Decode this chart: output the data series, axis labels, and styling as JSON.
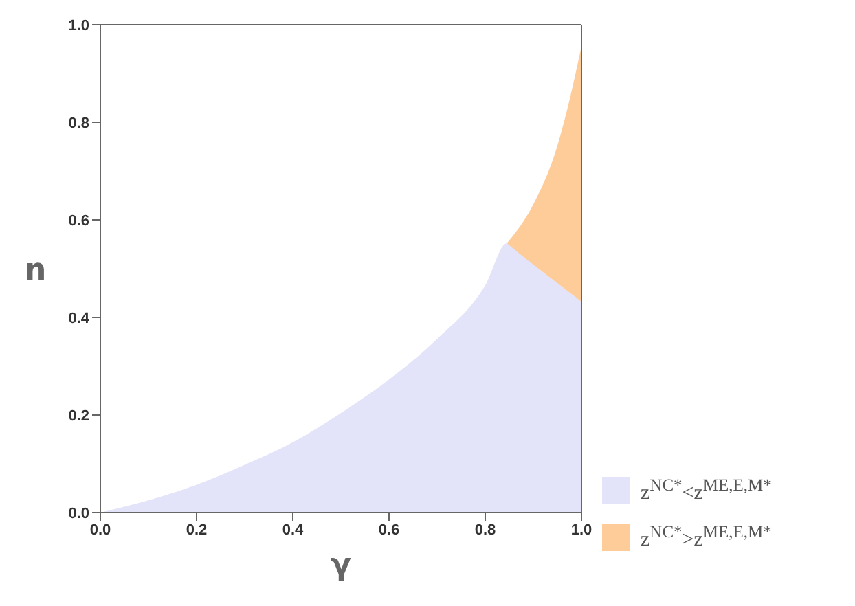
{
  "chart_data": {
    "type": "area",
    "stacked": true,
    "xlabel": "γ",
    "ylabel": "n",
    "x": [
      0,
      0.1,
      0.2,
      0.3,
      0.4,
      0.5,
      0.6,
      0.7,
      0.8,
      0.845,
      0.9,
      0.95,
      0.97,
      1.0
    ],
    "series": [
      {
        "name": "z$^{NC*}$<z$^{ME,E,M*}$",
        "color": "#e3e3fa",
        "values": [
          0,
          0.025,
          0.057,
          0.098,
          0.144,
          0.204,
          0.273,
          0.356,
          0.466,
          0.552,
          0.508,
          0.47,
          0.455,
          0.432
        ]
      },
      {
        "name": "z$^{NC*}$>z$^{ME,E,M*}$",
        "color": "#fecc99",
        "values": [
          null,
          null,
          null,
          null,
          null,
          null,
          null,
          null,
          null,
          0,
          0.124,
          0.282,
          0.37,
          0.524
        ]
      }
    ],
    "xlim": [
      0,
      1.0
    ],
    "xticks": [
      {
        "value": 0,
        "label": "0.0"
      },
      0.2,
      0.4,
      0.6,
      0.8,
      {
        "value": 1,
        "label": "1.0"
      }
    ],
    "ylim": [
      0,
      1.0
    ],
    "yticks": [
      {
        "value": 0,
        "label": "0.0"
      },
      0.2,
      0.4,
      0.6,
      0.8,
      {
        "value": 1,
        "label": "1.0"
      }
    ],
    "grid": false,
    "legend": "bottom right"
  }
}
